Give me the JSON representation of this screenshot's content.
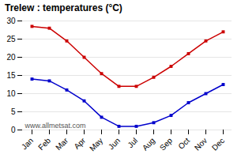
{
  "chart_data": {
    "type": "line",
    "title": "Trelew : temperatures (°C)",
    "categories": [
      "Jan",
      "Feb",
      "Mar",
      "Apr",
      "May",
      "Jun",
      "Jul",
      "Aug",
      "Sep",
      "Oct",
      "Nov",
      "Dec"
    ],
    "series": [
      {
        "color": "#cc0000",
        "marker": "square",
        "values": [
          28.5,
          28.0,
          24.5,
          20.0,
          15.5,
          12.0,
          12.0,
          14.5,
          17.5,
          21.0,
          24.5,
          27.0
        ]
      },
      {
        "color": "#0000cc",
        "marker": "square",
        "values": [
          14.0,
          13.5,
          11.0,
          8.0,
          3.5,
          1.0,
          1.0,
          2.0,
          4.0,
          7.5,
          10.0,
          12.5
        ]
      }
    ],
    "ylim": [
      0,
      30
    ],
    "yticks": [
      0,
      5,
      10,
      15,
      20,
      25,
      30
    ],
    "grid": "y",
    "annotations": [
      "www.allmetsat.com"
    ]
  }
}
